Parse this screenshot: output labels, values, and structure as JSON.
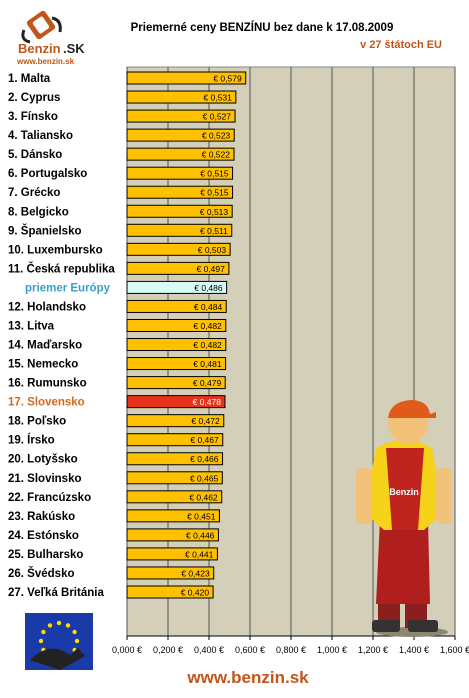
{
  "logo": {
    "name": "Benzin",
    "suffix": ".SK",
    "url": "www.benzin.sk"
  },
  "footer": {
    "url": "www.benzin.sk"
  },
  "colors": {
    "plot_bg": "#d4cfb8",
    "bar_fill": "#ffc000",
    "highlight_bar": "#e8321c",
    "highlight_text": "#d2691e",
    "average_fill": "#d8fbf6",
    "average_text": "#3aa0c9",
    "footer_text": "#c0561b",
    "subtitle_text": "#c0561b"
  },
  "chart_data": {
    "type": "bar",
    "orientation": "horizontal",
    "title": "Priemerné ceny BENZÍNU bez dane k 17.08.2009",
    "subtitle": "v 27 štátoch EU",
    "xlim": [
      0,
      1.6
    ],
    "x_ticks": [
      "0,000 €",
      "0,200 €",
      "0,400 €",
      "0,600 €",
      "0,800 €",
      "1,000 €",
      "1,200 €",
      "1,400 €",
      "1,600 €"
    ],
    "grid": true,
    "categories": [
      "1. Malta",
      "2. Cyprus",
      "3. Fínsko",
      "4. Taliansko",
      "5. Dánsko",
      "6. Portugalsko",
      "7. Grécko",
      "8. Belgicko",
      "9. Španielsko",
      "10. Luxembursko",
      "11. Česká republika",
      "priemer Európy",
      "12. Holandsko",
      "13. Litva",
      "14. Maďarsko",
      "15. Nemecko",
      "16. Rumunsko",
      "17. Slovensko",
      "18. Poľsko",
      "19. Írsko",
      "20. Lotyšsko",
      "21. Slovinsko",
      "22. Francúzsko",
      "23. Rakúsko",
      "24. Estónsko",
      "25. Bulharsko",
      "26. Švédsko",
      "27. Veľká Británia"
    ],
    "values": [
      0.579,
      0.531,
      0.527,
      0.523,
      0.522,
      0.515,
      0.515,
      0.513,
      0.511,
      0.503,
      0.497,
      0.486,
      0.484,
      0.482,
      0.482,
      0.481,
      0.479,
      0.478,
      0.472,
      0.467,
      0.466,
      0.465,
      0.462,
      0.451,
      0.446,
      0.441,
      0.423,
      0.42
    ],
    "value_labels": [
      "€ 0,579",
      "€ 0,531",
      "€ 0,527",
      "€ 0,523",
      "€ 0,522",
      "€ 0,515",
      "€ 0,515",
      "€ 0,513",
      "€ 0,511",
      "€ 0,503",
      "€ 0,497",
      "€ 0,486",
      "€ 0,484",
      "€ 0,482",
      "€ 0,482",
      "€ 0,481",
      "€ 0,479",
      "€ 0,478",
      "€ 0,472",
      "€ 0,467",
      "€ 0,466",
      "€ 0,465",
      "€ 0,462",
      "€ 0,451",
      "€ 0,446",
      "€ 0,441",
      "€ 0,423",
      "€ 0,420"
    ],
    "average_index": 11,
    "highlight_index": 17
  }
}
